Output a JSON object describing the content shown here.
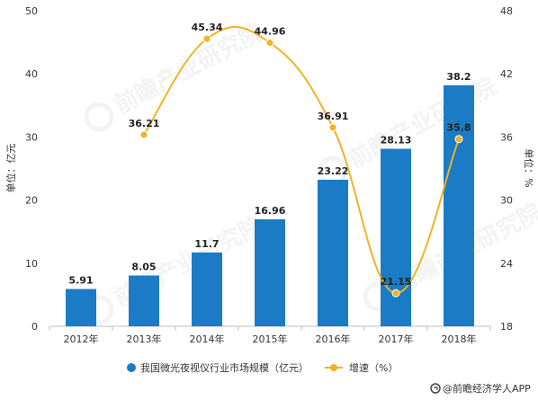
{
  "chart_data": {
    "type": "bar",
    "categories": [
      "2012年",
      "2013年",
      "2014年",
      "2015年",
      "2016年",
      "2017年",
      "2018年"
    ],
    "series": [
      {
        "name": "我国微光夜视仪行业市场规模（亿元）",
        "type": "bar",
        "axis": "left",
        "values": [
          5.91,
          8.05,
          11.7,
          16.96,
          23.22,
          28.13,
          38.2
        ],
        "labels": [
          "5.91",
          "8.05",
          "11.7",
          "16.96",
          "23.22",
          "28.13",
          "38.2"
        ]
      },
      {
        "name": "增速（%）",
        "type": "line",
        "axis": "right",
        "values": [
          null,
          36.21,
          45.34,
          44.96,
          36.91,
          21.15,
          35.8
        ],
        "labels": [
          "",
          "36.21",
          "45.34",
          "44.96",
          "36.91",
          "21.15",
          "35.8"
        ]
      }
    ],
    "ylabel": "单位：亿元",
    "y2label": "单位：%",
    "ylim": [
      0,
      50
    ],
    "yticks": [
      "0",
      "10",
      "20",
      "30",
      "40",
      "50"
    ],
    "y2lim": [
      18,
      48
    ],
    "y2ticks": [
      "18",
      "24",
      "30",
      "36",
      "42",
      "48"
    ],
    "grid": false,
    "legend_position": "bottom"
  },
  "colors": {
    "bar": "#1b7bc4",
    "line": "#f0b323",
    "axis": "#bfbfbf"
  },
  "source": {
    "icon": "logo-icon",
    "text": "@前瞻经济学人APP"
  }
}
